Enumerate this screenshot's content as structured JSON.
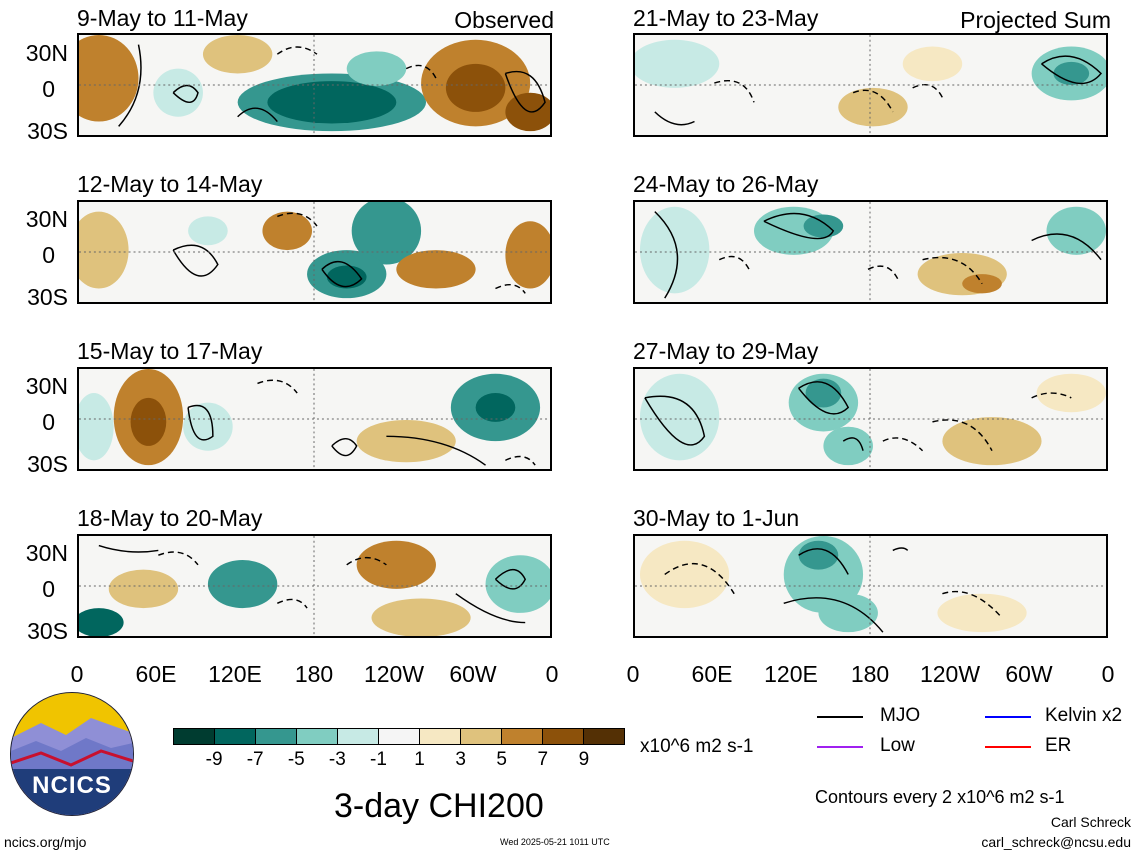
{
  "panels_left": [
    {
      "title": "9-May to 11-May",
      "corner": "Observed"
    },
    {
      "title": "12-May to 14-May",
      "corner": ""
    },
    {
      "title": "15-May to 17-May",
      "corner": ""
    },
    {
      "title": "18-May to 20-May",
      "corner": ""
    }
  ],
  "panels_right": [
    {
      "title": "21-May to 23-May",
      "corner": "Projected Sum"
    },
    {
      "title": "24-May to 26-May",
      "corner": ""
    },
    {
      "title": "27-May to 29-May",
      "corner": ""
    },
    {
      "title": "30-May to 1-Jun",
      "corner": ""
    }
  ],
  "lat_labels": [
    "30N",
    "0",
    "30S"
  ],
  "lon_labels": [
    "0",
    "60E",
    "120E",
    "180",
    "120W",
    "60W",
    "0"
  ],
  "colorbar": {
    "colors": [
      "#003c30",
      "#01665e",
      "#35978f",
      "#80cdc1",
      "#c7eae5",
      "#f5f5f5",
      "#f6e8c3",
      "#dfc27d",
      "#bf812d",
      "#8c510a",
      "#543005"
    ],
    "labels": [
      "-9",
      "-7",
      "-5",
      "-3",
      "-1",
      "1",
      "3",
      "5",
      "7",
      "9"
    ],
    "units": "x10^6 m2 s-1"
  },
  "legend": {
    "mjo": "MJO",
    "low": "Low",
    "kelvin": "Kelvin x2",
    "er": "ER",
    "colors": {
      "mjo": "#000000",
      "low": "#a020f0",
      "kelvin": "#0000ff",
      "er": "#ff0000"
    }
  },
  "footer": {
    "main_title": "3-day CHI200",
    "contours_note": "Contours every 2 x10^6 m2 s-1",
    "author": "Carl Schreck",
    "email": "carl_schreck@ncsu.edu",
    "site": "ncics.org/mjo",
    "timestamp": "Wed 2025-05-21 1011 UTC",
    "logo_text": "NCICS"
  }
}
